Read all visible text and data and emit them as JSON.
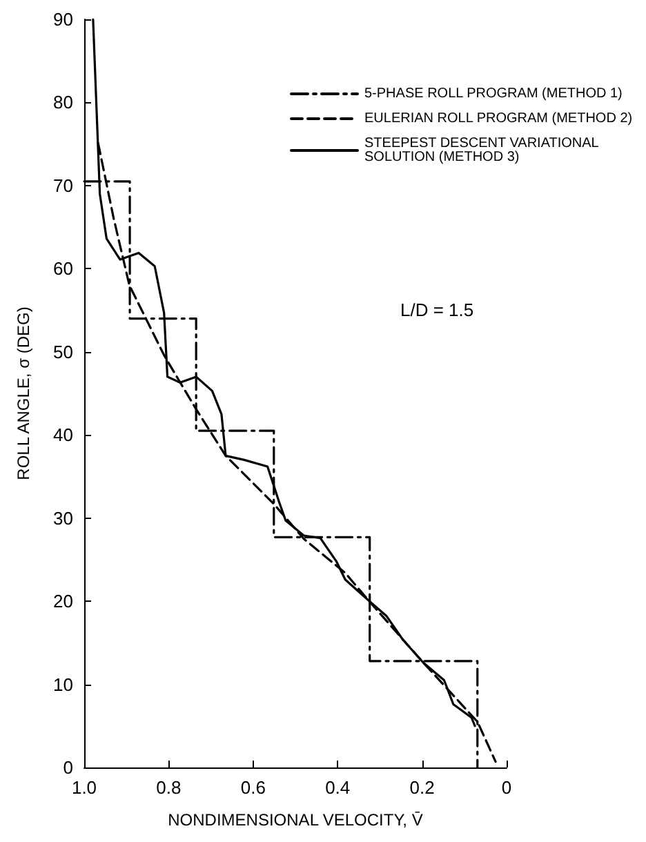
{
  "chart_data": {
    "type": "line",
    "xlabel": "NONDIMENSIONAL VELOCITY, V̄",
    "ylabel": "ROLL ANGLE, σ (DEG)",
    "xlim": [
      1.0,
      0
    ],
    "xticks": [
      {
        "value": 1.0,
        "label": "1.0"
      },
      {
        "value": 0.8,
        "label": "0.8"
      },
      {
        "value": 0.6,
        "label": "0.6"
      },
      {
        "value": 0.4,
        "label": "0.4"
      },
      {
        "value": 0.2,
        "label": "0.2"
      },
      0
    ],
    "ylim": [
      0,
      90
    ],
    "yticks": [
      0,
      10,
      20,
      30,
      40,
      50,
      60,
      70,
      80,
      90
    ],
    "grid": false,
    "legend": "top right",
    "marker": "none",
    "annotations": [
      "L/D = 1.5"
    ],
    "series": [
      {
        "name": "5-PHASE ROLL PROGRAM (METHOD 1)",
        "color": "#000000",
        "line_style": "dashdot",
        "x": [
          1.0,
          0.892,
          0.892,
          0.735,
          0.735,
          0.551,
          0.551,
          0.324,
          0.324,
          0.069,
          0.069
        ],
        "values": [
          70.5,
          70.5,
          54,
          54,
          40.5,
          40.5,
          27.7,
          27.7,
          12.8,
          12.8,
          0
        ]
      },
      {
        "name": "EULERIAN ROLL PROGRAM (METHOD 2)",
        "color": "#000000",
        "line_style": "dashed",
        "x": [
          0.967,
          0.93,
          0.893,
          0.81,
          0.735,
          0.665,
          0.551,
          0.48,
          0.382,
          0.327,
          0.197,
          0.069,
          0.026
        ],
        "values": [
          75.1,
          66,
          58,
          49.5,
          43.1,
          37.5,
          31.7,
          27.5,
          23.4,
          20.1,
          12.6,
          5.5,
          0.7
        ]
      },
      {
        "name": "STEEPEST DESCENT VARIATIONAL SOLUTION (METHOD 3)",
        "color": "#000000",
        "line_style": "solid",
        "x": [
          0.979,
          0.963,
          0.947,
          0.915,
          0.871,
          0.833,
          0.811,
          0.803,
          0.773,
          0.735,
          0.697,
          0.675,
          0.665,
          0.621,
          0.566,
          0.539,
          0.523,
          0.48,
          0.441,
          0.403,
          0.382,
          0.327,
          0.284,
          0.246,
          0.197,
          0.148,
          0.126,
          0.083,
          0.075
        ],
        "values": [
          90,
          69,
          63.6,
          61.1,
          61.9,
          60.3,
          54.7,
          47,
          46.3,
          47,
          45.3,
          42.5,
          37.5,
          37,
          36.2,
          32,
          29.7,
          27.9,
          27.6,
          24.8,
          22.6,
          20.1,
          18.2,
          15.4,
          12.6,
          10.5,
          7.6,
          6,
          5
        ]
      }
    ]
  }
}
